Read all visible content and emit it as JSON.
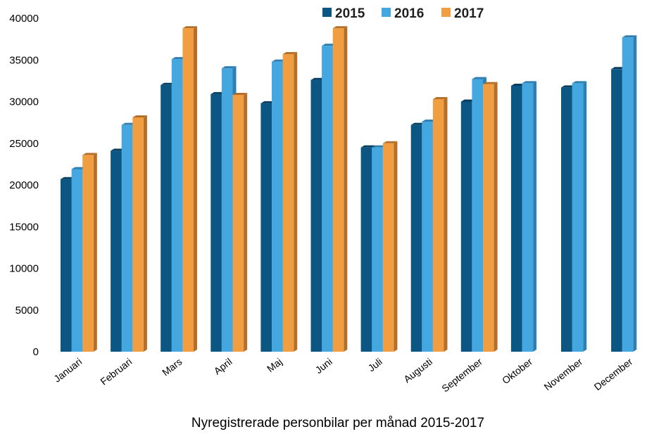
{
  "chart_data": {
    "type": "bar",
    "title": "Nyregistrerade personbilar per månad 2015-2017",
    "xlabel": "",
    "ylabel": "",
    "ylim": [
      0,
      40000
    ],
    "yticks": [
      0,
      5000,
      10000,
      15000,
      20000,
      25000,
      30000,
      35000,
      40000
    ],
    "legend_position": "top",
    "categories": [
      "Januari",
      "Februari",
      "Mars",
      "April",
      "Maj",
      "Juni",
      "Juli",
      "Augusti",
      "September",
      "Oktober",
      "November",
      "December"
    ],
    "series": [
      {
        "name": "2015",
        "color": "#0b5683",
        "side": "#073d5e",
        "values": [
          20700,
          24100,
          32000,
          30900,
          29800,
          32600,
          24500,
          27200,
          30000,
          31900,
          31700,
          33900
        ]
      },
      {
        "name": "2016",
        "color": "#45a7e0",
        "side": "#2f7fb0",
        "values": [
          21900,
          27200,
          35100,
          34000,
          34800,
          36700,
          24500,
          27600,
          32700,
          32200,
          32200,
          37700
        ]
      },
      {
        "name": "2017",
        "color": "#f19d41",
        "side": "#b4702a",
        "values": [
          23600,
          28100,
          38800,
          30800,
          35700,
          38800,
          25000,
          30300,
          32100,
          null,
          null,
          null
        ]
      }
    ]
  }
}
